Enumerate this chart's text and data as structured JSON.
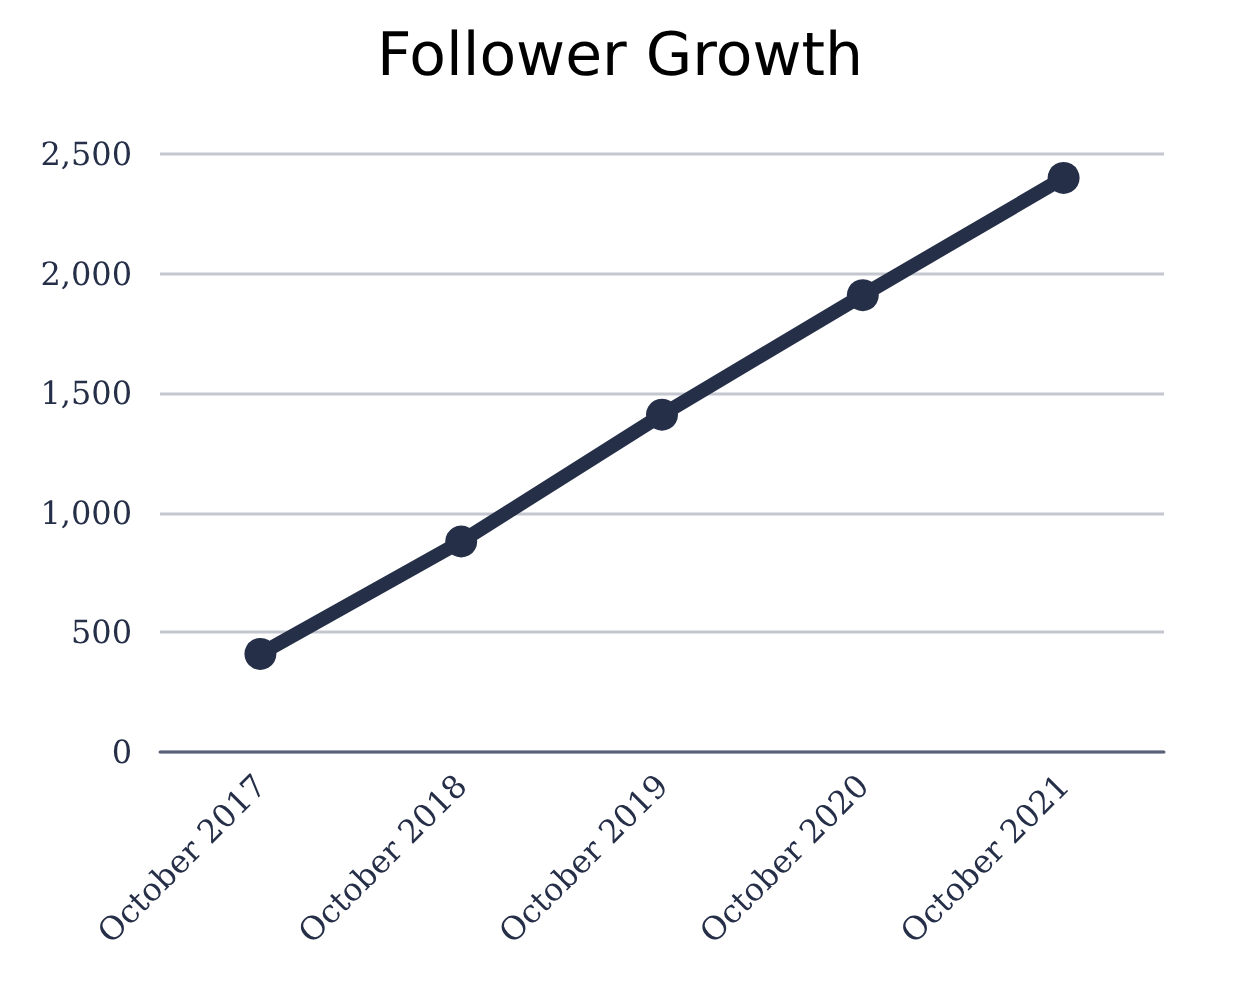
{
  "chart_data": {
    "type": "line",
    "title": "Follower Growth",
    "categories": [
      "October 2017",
      "October 2018",
      "October 2019",
      "October 2020",
      "October 2021"
    ],
    "series": [
      {
        "color": "#262f48",
        "values": [
          410,
          880,
          1410,
          1910,
          2400
        ]
      }
    ],
    "ylim": [
      0,
      2500
    ],
    "yticks": [
      0,
      500,
      {
        "value": 1000,
        "label": "1,000"
      },
      {
        "value": 1500,
        "label": "1,500"
      },
      {
        "value": 2000,
        "label": "2,000"
      },
      {
        "value": 2500,
        "label": "2,500"
      }
    ],
    "grid": "y",
    "marker": "circle",
    "line_style": "solid"
  }
}
